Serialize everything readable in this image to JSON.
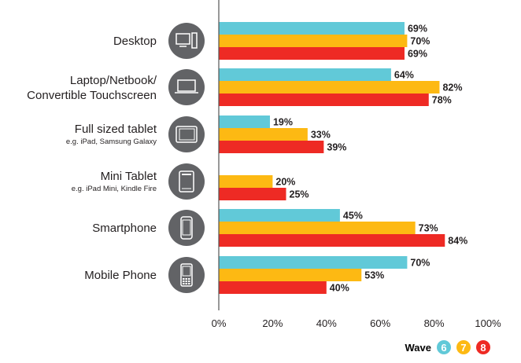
{
  "chart_data": {
    "type": "bar",
    "orientation": "horizontal",
    "categories": [
      {
        "label": [
          "Desktop"
        ],
        "sub": "",
        "icon": "desktop-icon"
      },
      {
        "label": [
          "Laptop/Netbook/",
          "Convertible Touchscreen"
        ],
        "sub": "",
        "icon": "laptop-icon"
      },
      {
        "label": [
          "Full sized tablet"
        ],
        "sub": "e.g. iPad, Samsung Galaxy",
        "icon": "tablet-icon"
      },
      {
        "label": [
          "Mini Tablet"
        ],
        "sub": "e.g. iPad Mini, Kindle Fire",
        "icon": "mini-tablet-icon"
      },
      {
        "label": [
          "Smartphone"
        ],
        "sub": "",
        "icon": "smartphone-icon"
      },
      {
        "label": [
          "Mobile Phone"
        ],
        "sub": "",
        "icon": "mobile-phone-icon"
      }
    ],
    "series": [
      {
        "name": "6",
        "color": "#61c9d8",
        "values": [
          69,
          64,
          19,
          null,
          45,
          70
        ]
      },
      {
        "name": "7",
        "color": "#fdb913",
        "values": [
          70,
          82,
          33,
          20,
          73,
          53
        ]
      },
      {
        "name": "8",
        "color": "#ee2a24",
        "values": [
          69,
          78,
          39,
          25,
          84,
          40
        ]
      }
    ],
    "xlim": [
      0,
      100
    ],
    "xticks": [
      "0%",
      "20%",
      "40%",
      "60%",
      "80%",
      "100%"
    ],
    "legend_title": "Wave",
    "legend_placement": "bottom-right",
    "icon_color": "#626366"
  }
}
